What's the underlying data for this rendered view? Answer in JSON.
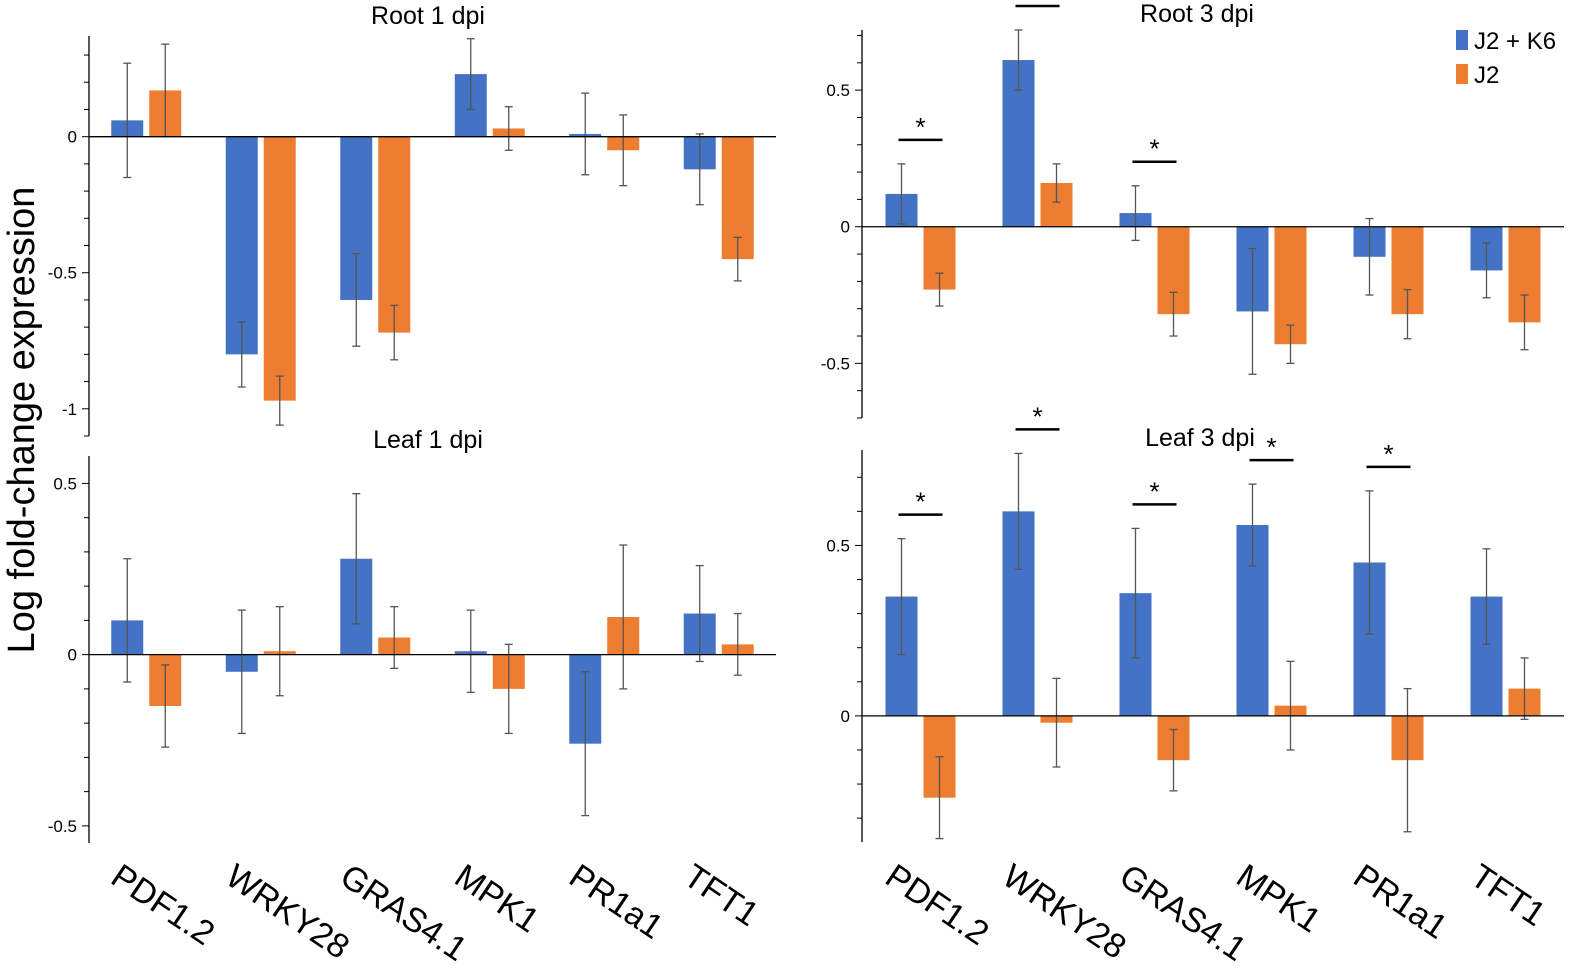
{
  "chart_data": {
    "type": "bar",
    "ylabel": "Log fold-change expression",
    "categories": [
      "PDF1.2",
      "WRKY28",
      "GRAS4.1",
      "MPK1",
      "PR1a1",
      "TFT1"
    ],
    "legend": [
      {
        "name": "J2 + K6",
        "color": "#4472C4"
      },
      {
        "name": "J2",
        "color": "#ED7D31"
      }
    ],
    "legend_position": "top-right",
    "panels": [
      {
        "title": "Root 1 dpi",
        "ylim": [
          -1.1,
          0.37
        ],
        "ticks": [
          {
            "value": 0,
            "label": "0"
          },
          {
            "value": -0.5,
            "label": "-0.5"
          },
          {
            "value": -1,
            "label": "-1"
          }
        ],
        "series": [
          {
            "name": "J2 + K6",
            "values": [
              0.06,
              -0.8,
              -0.6,
              0.23,
              0.01,
              -0.12
            ],
            "errors": [
              0.21,
              0.12,
              0.17,
              0.13,
              0.15,
              0.13
            ]
          },
          {
            "name": "J2",
            "values": [
              0.17,
              -0.97,
              -0.72,
              0.03,
              -0.05,
              -0.45
            ],
            "errors": [
              0.17,
              0.09,
              0.1,
              0.08,
              0.13,
              0.08
            ]
          }
        ],
        "significant": []
      },
      {
        "title": "Root 3 dpi",
        "ylim": [
          -0.7,
          0.72
        ],
        "ticks": [
          {
            "value": 0.5,
            "label": "0.5"
          },
          {
            "value": 0,
            "label": "0"
          },
          {
            "value": -0.5,
            "label": "-0.5"
          }
        ],
        "series": [
          {
            "name": "J2 + K6",
            "values": [
              0.12,
              0.61,
              0.05,
              -0.31,
              -0.11,
              -0.16
            ],
            "errors": [
              0.11,
              0.11,
              0.1,
              0.23,
              0.14,
              0.1
            ]
          },
          {
            "name": "J2",
            "values": [
              -0.23,
              0.16,
              -0.32,
              -0.43,
              -0.32,
              -0.35
            ],
            "errors": [
              0.06,
              0.07,
              0.08,
              0.07,
              0.09,
              0.1
            ]
          }
        ],
        "significant": [
          "PDF1.2",
          "WRKY28",
          "GRAS4.1"
        ],
        "significance_mark": "*"
      },
      {
        "title": "Leaf 1 dpi",
        "ylim": [
          -0.55,
          0.58
        ],
        "ticks": [
          {
            "value": 0.5,
            "label": "0.5"
          },
          {
            "value": 0,
            "label": "0"
          },
          {
            "value": -0.5,
            "label": "-0.5"
          }
        ],
        "series": [
          {
            "name": "J2 + K6",
            "values": [
              0.1,
              -0.05,
              0.28,
              0.01,
              -0.26,
              0.12
            ],
            "errors": [
              0.18,
              0.18,
              0.19,
              0.12,
              0.21,
              0.14
            ]
          },
          {
            "name": "J2",
            "values": [
              -0.15,
              0.01,
              0.05,
              -0.1,
              0.11,
              0.03
            ],
            "errors": [
              0.12,
              0.13,
              0.09,
              0.13,
              0.21,
              0.09
            ]
          }
        ],
        "significant": []
      },
      {
        "title": "Leaf 3 dpi",
        "ylim": [
          -0.37,
          0.78
        ],
        "ticks": [
          {
            "value": 0.5,
            "label": "0.5"
          },
          {
            "value": 0,
            "label": "0"
          }
        ],
        "series": [
          {
            "name": "J2 + K6",
            "values": [
              0.35,
              0.6,
              0.36,
              0.56,
              0.45,
              0.35
            ],
            "errors": [
              0.17,
              0.17,
              0.19,
              0.12,
              0.21,
              0.14
            ]
          },
          {
            "name": "J2",
            "values": [
              -0.24,
              -0.02,
              -0.13,
              0.03,
              -0.13,
              0.08
            ],
            "errors": [
              0.12,
              0.13,
              0.09,
              0.13,
              0.21,
              0.09
            ]
          }
        ],
        "significant": [
          "PDF1.2",
          "WRKY28",
          "GRAS4.1",
          "MPK1",
          "PR1a1"
        ],
        "significance_mark": "*"
      }
    ]
  }
}
